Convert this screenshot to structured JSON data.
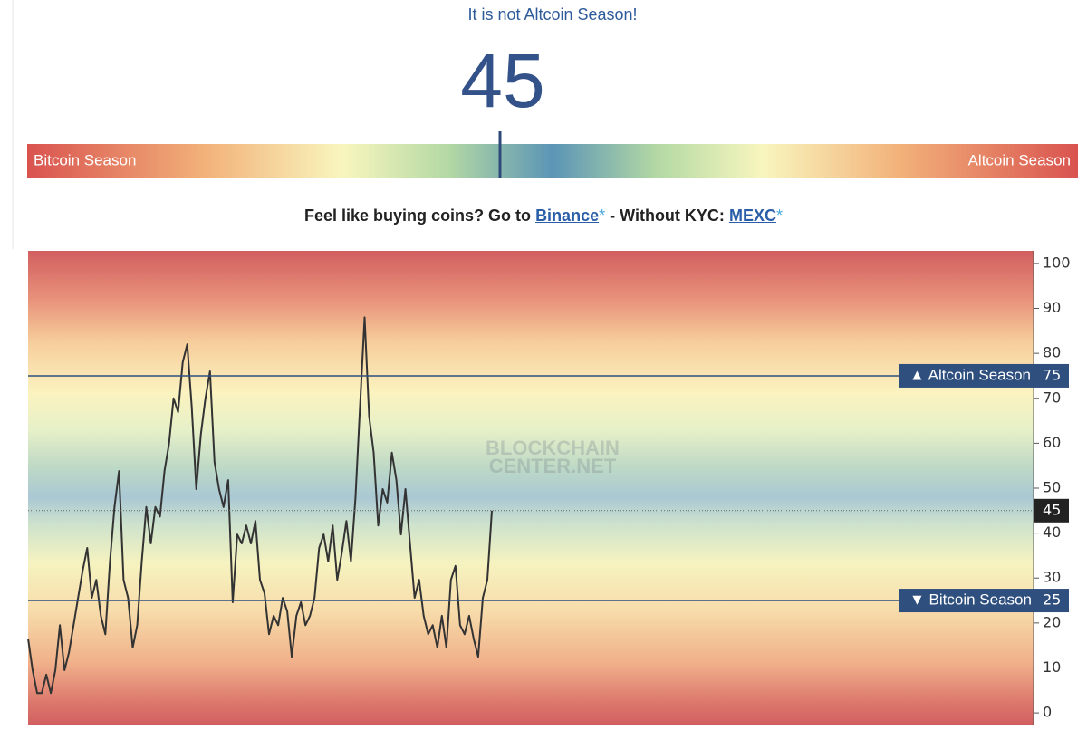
{
  "header": {
    "status": "It is not Altcoin Season!",
    "index": 45,
    "gauge": {
      "range": [
        0,
        100
      ],
      "left_label": "Bitcoin Season",
      "right_label": "Altcoin Season"
    }
  },
  "promo": {
    "lead": "Feel like buying coins? Go to",
    "link1": "Binance",
    "asterisk": "*",
    "middle": "- Without KYC:",
    "link2": "MEXC"
  },
  "chart_data": {
    "type": "line",
    "series": [
      {
        "color": "#333333",
        "values": [
          16.5,
          9.5,
          4.4,
          4.4,
          8.5,
          4.4,
          9.5,
          19.5,
          9.5,
          13.5,
          19.5,
          25.6,
          31.6,
          36.7,
          25.6,
          29.6,
          21.6,
          17.5,
          33.7,
          45.8,
          53.8,
          29.6,
          25.6,
          14.5,
          19.5,
          33.7,
          45.8,
          37.7,
          45.8,
          43.7,
          53.8,
          59.9,
          70,
          66.9,
          78,
          82,
          68,
          49.8,
          61.9,
          70,
          76,
          55.8,
          49.8,
          45.8,
          51.8,
          24.6,
          39.7,
          37.7,
          41.7,
          37.7,
          42.7,
          29.6,
          26.6,
          17.5,
          21.6,
          19.5,
          25.6,
          22.6,
          12.5,
          21.6,
          24.6,
          19.5,
          21.6,
          25.6,
          36.7,
          39.7,
          33.7,
          41.7,
          29.6,
          35.7,
          42.7,
          33.7,
          47.8,
          68,
          88,
          66,
          57.9,
          41.7,
          49.8,
          46.8,
          57.9,
          51.8,
          39.7,
          49.8,
          37.7,
          25.6,
          29.6,
          21.6,
          17.5,
          19.5,
          14.5,
          21.6,
          14.5,
          29.6,
          32.7,
          19.5,
          17.5,
          21.6,
          16.5,
          12.5,
          25.6,
          29.6,
          45
        ]
      }
    ],
    "ylim": [
      -2.6,
      102.8
    ],
    "yticks": [
      0,
      10,
      20,
      30,
      40,
      50,
      60,
      70,
      80,
      90,
      100
    ],
    "reference_lines": [
      {
        "value": 75,
        "label": "▲ Altcoin Season",
        "color": "#2f4f7f"
      },
      {
        "value": 25,
        "label": "▼ Bitcoin Season",
        "color": "#2f4f7f"
      }
    ],
    "current_value": 45,
    "watermark": [
      "BLOCKCHAIN",
      "CENTER.NET"
    ]
  }
}
